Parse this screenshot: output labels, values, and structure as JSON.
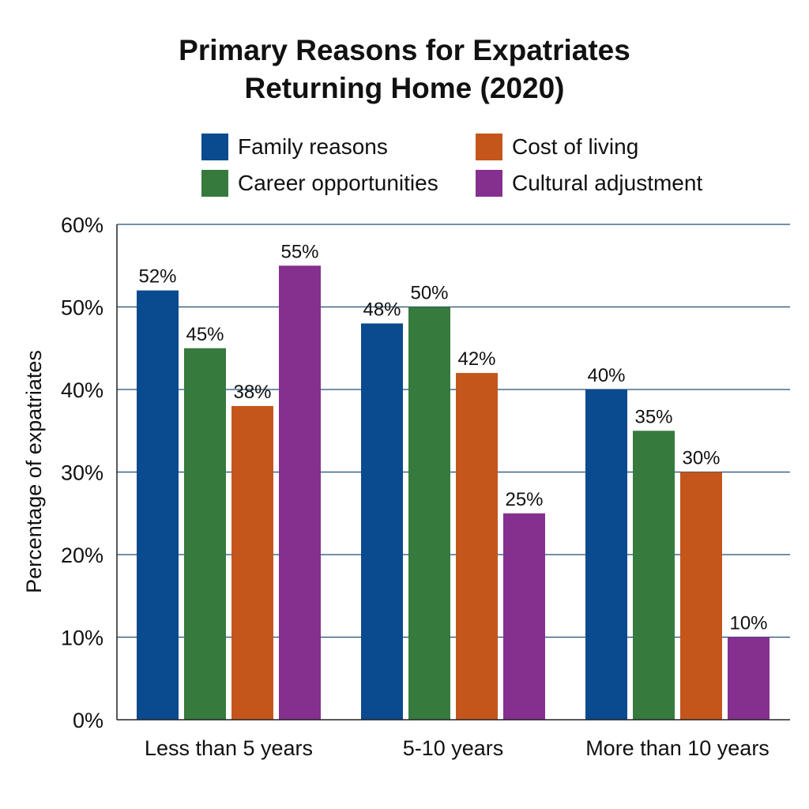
{
  "chart_data": {
    "type": "bar",
    "title": "Primary Reasons for Expatriates Returning Home (2020)",
    "title_lines": [
      "Primary Reasons for Expatriates",
      "Returning Home (2020)"
    ],
    "xlabel": "",
    "ylabel": "Percentage of expatriates",
    "categories": [
      "Less than 5 years",
      "5-10 years",
      "More than 10 years"
    ],
    "ylim": [
      0,
      60
    ],
    "yticks": [
      0,
      10,
      20,
      30,
      40,
      50,
      60
    ],
    "ytick_labels": [
      "0%",
      "10%",
      "20%",
      "30%",
      "40%",
      "50%",
      "60%"
    ],
    "grid": true,
    "legend_position": "top",
    "series": [
      {
        "name": "Family reasons",
        "color": "#0a4a8e",
        "values": [
          52,
          48,
          40
        ],
        "labels": [
          "52%",
          "48%",
          "40%"
        ]
      },
      {
        "name": "Career opportunities",
        "color": "#367a3e",
        "values": [
          45,
          50,
          35
        ],
        "labels": [
          "45%",
          "50%",
          "35%"
        ]
      },
      {
        "name": "Cost of living",
        "color": "#c4561c",
        "values": [
          38,
          42,
          30
        ],
        "labels": [
          "38%",
          "42%",
          "30%"
        ]
      },
      {
        "name": "Cultural adjustment",
        "color": "#85308f",
        "values": [
          55,
          25,
          10
        ],
        "labels": [
          "55%",
          "25%",
          "10%"
        ]
      }
    ],
    "grid_color": "#1f4e79"
  }
}
